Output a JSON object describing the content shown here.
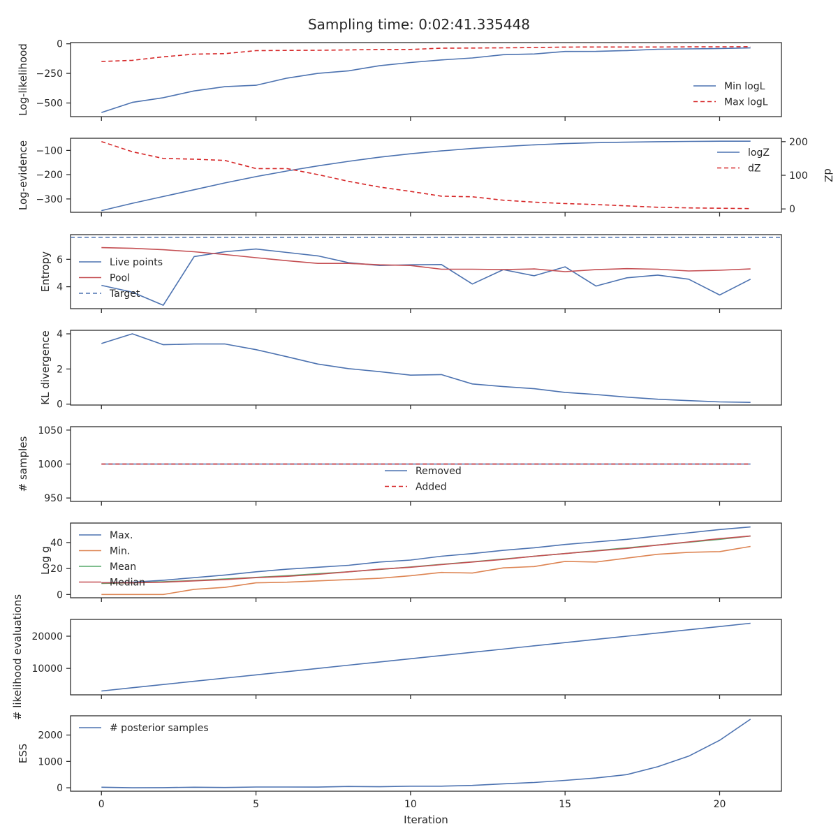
{
  "figure": {
    "title": "Sampling time: 0:02:41.335448"
  },
  "colors": {
    "blue": "#4c72b0",
    "red": "#d62728",
    "poolred": "#c44e52",
    "orange": "#dd8452",
    "green": "#55a868",
    "axis": "#262626"
  },
  "chart_data": [
    {
      "type": "line",
      "ylabel": "Log-likelihood",
      "xlim": [
        -1,
        22
      ],
      "ylim": [
        -615,
        10
      ],
      "yticks": [
        0,
        -250,
        -500
      ],
      "yticklabels": [
        "0",
        "−250",
        "−500"
      ],
      "legend": "lower-right",
      "series": [
        {
          "name": "Min logL",
          "color": "blue",
          "dashed": false,
          "x": [
            0,
            1,
            2,
            3,
            4,
            5,
            6,
            7,
            8,
            9,
            10,
            11,
            12,
            13,
            14,
            15,
            16,
            17,
            18,
            19,
            20,
            21
          ],
          "values": [
            -580,
            -495,
            -455,
            -398,
            -362,
            -350,
            -290,
            -250,
            -228,
            -185,
            -158,
            -136,
            -120,
            -92,
            -86,
            -65,
            -64,
            -57,
            -46,
            -43,
            -40,
            -35
          ]
        },
        {
          "name": "Max logL",
          "color": "red",
          "dashed": true,
          "x": [
            0,
            1,
            2,
            3,
            4,
            5,
            6,
            7,
            8,
            9,
            10,
            11,
            12,
            13,
            14,
            15,
            16,
            17,
            18,
            19,
            20,
            21
          ],
          "values": [
            -150,
            -140,
            -110,
            -87,
            -83,
            -58,
            -56,
            -55,
            -52,
            -48,
            -48,
            -37,
            -36,
            -34,
            -32,
            -28,
            -27,
            -27,
            -27,
            -26,
            -26,
            -24
          ]
        }
      ]
    },
    {
      "type": "line",
      "ylabel": "Log-evidence",
      "y2label": "dZ",
      "xlim": [
        -1,
        22
      ],
      "ylim": [
        -355,
        -50
      ],
      "yticks": [
        -100,
        -200,
        -300
      ],
      "yticklabels": [
        "−100",
        "−200",
        "−300"
      ],
      "y2lim": [
        -10,
        210
      ],
      "y2ticks": [
        200,
        100,
        0
      ],
      "y2ticklabels": [
        "200",
        "100",
        "0"
      ],
      "legend": "top-right",
      "series": [
        {
          "name": "logZ",
          "color": "blue",
          "dashed": false,
          "axis": "left",
          "x": [
            0,
            1,
            2,
            3,
            4,
            5,
            6,
            7,
            8,
            9,
            10,
            11,
            12,
            13,
            14,
            15,
            16,
            17,
            18,
            19,
            20,
            21
          ],
          "values": [
            -348,
            -318,
            -290,
            -262,
            -234,
            -208,
            -185,
            -164,
            -145,
            -128,
            -114,
            -102,
            -92,
            -84,
            -77,
            -72,
            -68,
            -66,
            -64,
            -63,
            -62,
            -62
          ]
        },
        {
          "name": "dZ",
          "color": "red",
          "dashed": true,
          "axis": "right",
          "x": [
            0,
            1,
            2,
            3,
            4,
            5,
            6,
            7,
            8,
            9,
            10,
            11,
            12,
            13,
            14,
            15,
            16,
            17,
            18,
            19,
            20,
            21
          ],
          "values": [
            200,
            170,
            150,
            148,
            144,
            120,
            120,
            102,
            82,
            65,
            52,
            38,
            36,
            26,
            20,
            16,
            13,
            9,
            5,
            3,
            2,
            1
          ]
        }
      ]
    },
    {
      "type": "line",
      "ylabel": "Entropy",
      "xlim": [
        -1,
        22
      ],
      "ylim": [
        2.4,
        7.8
      ],
      "yticks": [
        6,
        4
      ],
      "yticklabels": [
        "6",
        "4"
      ],
      "legend": "bottom-left",
      "series": [
        {
          "name": "Live points",
          "color": "blue",
          "dashed": false,
          "x": [
            0,
            1,
            2,
            3,
            4,
            5,
            6,
            7,
            8,
            9,
            10,
            11,
            12,
            13,
            14,
            15,
            16,
            17,
            18,
            19,
            20,
            21
          ],
          "values": [
            4.1,
            3.6,
            2.65,
            6.2,
            6.55,
            6.75,
            6.5,
            6.25,
            5.75,
            5.55,
            5.6,
            5.62,
            4.2,
            5.25,
            4.8,
            5.45,
            4.05,
            4.65,
            4.85,
            4.55,
            3.4,
            4.55
          ]
        },
        {
          "name": "Pool",
          "color": "poolred",
          "dashed": false,
          "x": [
            0,
            1,
            2,
            3,
            4,
            5,
            6,
            7,
            8,
            9,
            10,
            11,
            12,
            13,
            14,
            15,
            16,
            17,
            18,
            19,
            20,
            21
          ],
          "values": [
            6.85,
            6.8,
            6.7,
            6.55,
            6.35,
            6.12,
            5.9,
            5.7,
            5.7,
            5.6,
            5.55,
            5.28,
            5.28,
            5.25,
            5.3,
            5.1,
            5.25,
            5.32,
            5.28,
            5.15,
            5.2,
            5.3
          ]
        },
        {
          "name": "Target",
          "color": "blue",
          "dashed": true,
          "hline": 7.6
        }
      ]
    },
    {
      "type": "line",
      "ylabel": "KL divergence",
      "xlim": [
        -1,
        22
      ],
      "ylim": [
        -0.05,
        4.2
      ],
      "yticks": [
        4,
        2,
        0
      ],
      "yticklabels": [
        "4",
        "2",
        "0"
      ],
      "series": [
        {
          "name": "",
          "color": "blue",
          "dashed": false,
          "x": [
            0,
            1,
            2,
            3,
            4,
            5,
            6,
            7,
            8,
            9,
            10,
            11,
            12,
            13,
            14,
            15,
            16,
            17,
            18,
            19,
            20,
            21
          ],
          "values": [
            3.45,
            4.0,
            3.38,
            3.42,
            3.42,
            3.1,
            2.7,
            2.28,
            2.02,
            1.85,
            1.65,
            1.68,
            1.15,
            1.0,
            0.88,
            0.67,
            0.55,
            0.4,
            0.28,
            0.2,
            0.13,
            0.1
          ]
        }
      ]
    },
    {
      "type": "line",
      "ylabel": "# samples",
      "xlim": [
        -1,
        22
      ],
      "ylim": [
        945,
        1055
      ],
      "yticks": [
        1050,
        1000,
        950
      ],
      "yticklabels": [
        "1050",
        "1000",
        "950"
      ],
      "legend": "bottom-center",
      "series": [
        {
          "name": "Removed",
          "color": "blue",
          "dashed": false,
          "x": [
            0,
            21
          ],
          "values": [
            1000,
            1000
          ]
        },
        {
          "name": "Added",
          "color": "red",
          "dashed": true,
          "x": [
            0,
            21
          ],
          "values": [
            1000,
            1000
          ]
        }
      ]
    },
    {
      "type": "line",
      "ylabel": "Log g",
      "xlim": [
        -1,
        22
      ],
      "ylim": [
        -2.5,
        55
      ],
      "yticks": [
        40,
        20,
        0
      ],
      "yticklabels": [
        "40",
        "20",
        "0"
      ],
      "legend": "top-left",
      "series": [
        {
          "name": "Max.",
          "color": "blue",
          "dashed": false,
          "x": [
            0,
            1,
            2,
            3,
            4,
            5,
            6,
            7,
            8,
            9,
            10,
            11,
            12,
            13,
            14,
            15,
            16,
            17,
            18,
            19,
            20,
            21
          ],
          "values": [
            9,
            9.5,
            11,
            13,
            15,
            17.5,
            19.5,
            21,
            22.5,
            25,
            26.5,
            29.5,
            31.5,
            34,
            36,
            38.5,
            40.5,
            42.5,
            45,
            47.5,
            50,
            52
          ]
        },
        {
          "name": "Min.",
          "color": "orange",
          "dashed": false,
          "x": [
            0,
            1,
            2,
            3,
            4,
            5,
            6,
            7,
            8,
            9,
            10,
            11,
            12,
            13,
            14,
            15,
            16,
            17,
            18,
            19,
            20,
            21
          ],
          "values": [
            0,
            0,
            0,
            4,
            5.5,
            9,
            9.5,
            10.5,
            11.5,
            12.5,
            14.5,
            17,
            16.5,
            20.5,
            21.5,
            25.5,
            25,
            28,
            31,
            32.5,
            33,
            37
          ]
        },
        {
          "name": "Mean",
          "color": "green",
          "dashed": false,
          "x": [
            0,
            1,
            2,
            3,
            4,
            5,
            6,
            7,
            8,
            9,
            10,
            11,
            12,
            13,
            14,
            15,
            16,
            17,
            18,
            19,
            20,
            21
          ],
          "values": [
            8.5,
            9,
            9.8,
            10.8,
            12,
            13.2,
            14.5,
            16,
            17.5,
            19.3,
            21.2,
            23.2,
            25.2,
            27.3,
            29.4,
            31.5,
            33.7,
            35.9,
            38.1,
            40.3,
            42.5,
            45
          ]
        },
        {
          "name": "Median",
          "color": "poolred",
          "dashed": false,
          "x": [
            0,
            1,
            2,
            3,
            4,
            5,
            6,
            7,
            8,
            9,
            10,
            11,
            12,
            13,
            14,
            15,
            16,
            17,
            18,
            19,
            20,
            21
          ],
          "values": [
            9,
            9,
            9.5,
            10.5,
            11.5,
            13,
            14,
            15.5,
            17.5,
            19.5,
            21,
            23,
            25,
            27,
            29.5,
            31.5,
            33.5,
            35.5,
            38,
            40.5,
            43,
            45
          ]
        }
      ]
    },
    {
      "type": "line",
      "ylabel": "# likelihood evaluations",
      "xlim": [
        -1,
        22
      ],
      "ylim": [
        1800,
        25200
      ],
      "yticks": [
        20000,
        10000
      ],
      "yticklabels": [
        "20000",
        "10000"
      ],
      "series": [
        {
          "name": "",
          "color": "blue",
          "dashed": false,
          "x": [
            0,
            1,
            2,
            3,
            4,
            5,
            6,
            7,
            8,
            9,
            10,
            11,
            12,
            13,
            14,
            15,
            16,
            17,
            18,
            19,
            20,
            21
          ],
          "values": [
            3000,
            4000,
            5000,
            6000,
            7000,
            8000,
            9000,
            10000,
            11000,
            12000,
            13000,
            14000,
            15000,
            16000,
            17000,
            18000,
            19000,
            20000,
            21000,
            22000,
            23000,
            24000
          ]
        }
      ]
    },
    {
      "type": "line",
      "ylabel": "ESS",
      "xlabel": "Iteration",
      "xlim": [
        -1,
        22
      ],
      "xticks": [
        0,
        5,
        10,
        15,
        20
      ],
      "xticklabels": [
        "0",
        "5",
        "10",
        "15",
        "20"
      ],
      "ylim": [
        -130,
        2730
      ],
      "yticks": [
        2000,
        1000,
        0
      ],
      "yticklabels": [
        "2000",
        "1000",
        "0"
      ],
      "legend": "top-left",
      "series": [
        {
          "name": "# posterior samples",
          "color": "blue",
          "dashed": false,
          "x": [
            0,
            1,
            2,
            3,
            4,
            5,
            6,
            7,
            8,
            9,
            10,
            11,
            12,
            13,
            14,
            15,
            16,
            17,
            18,
            19,
            20,
            21
          ],
          "values": [
            20,
            0,
            5,
            20,
            10,
            30,
            30,
            25,
            50,
            40,
            60,
            60,
            90,
            150,
            200,
            280,
            370,
            500,
            800,
            1200,
            1800,
            2600
          ]
        }
      ]
    }
  ]
}
